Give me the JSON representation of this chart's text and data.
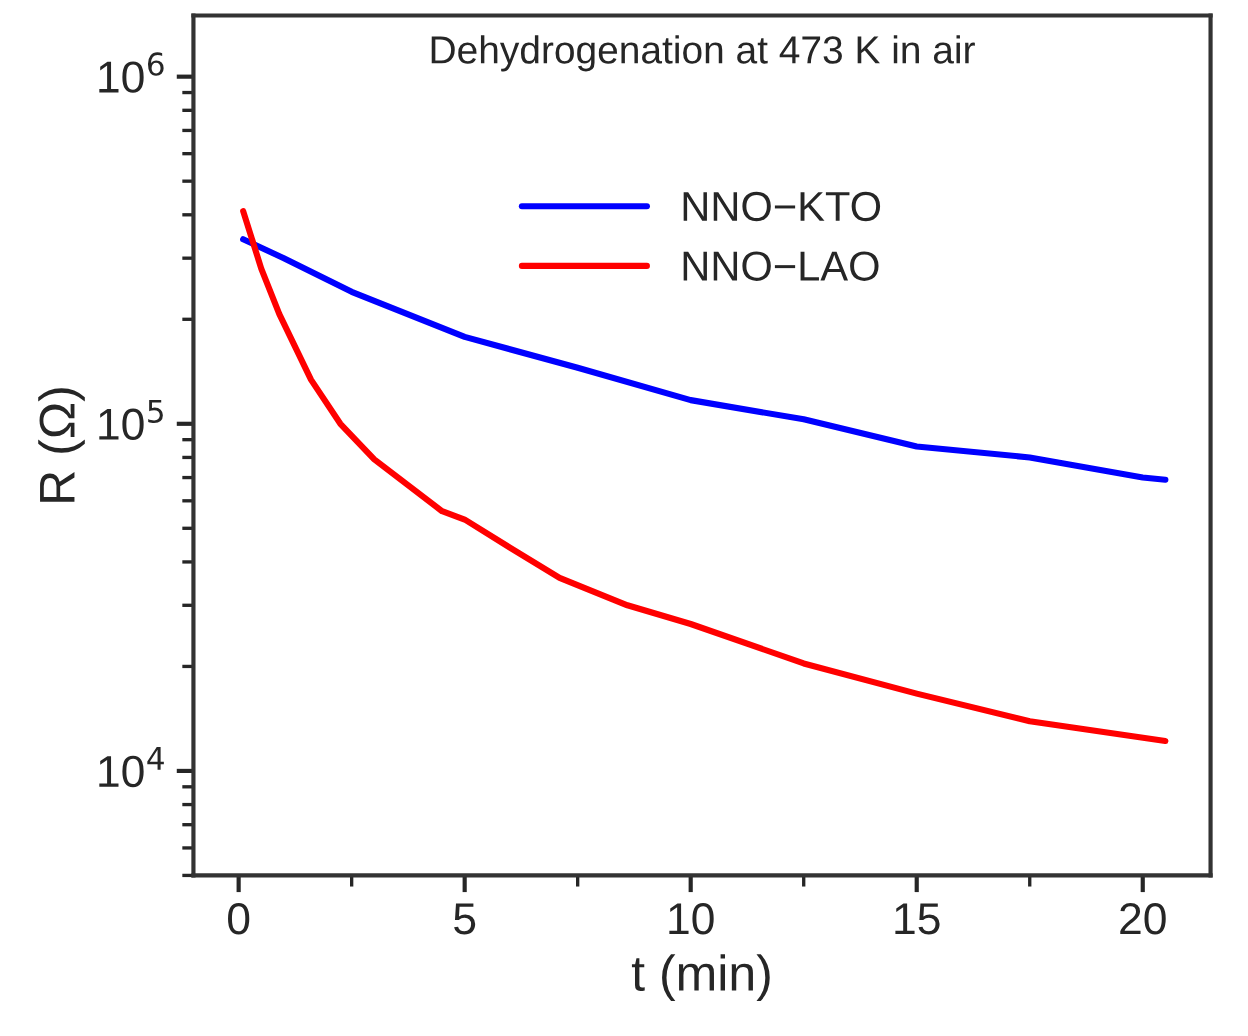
{
  "chart_data": {
    "type": "line",
    "title": "Dehydrogenation at 473 K in air",
    "xlabel": "t (min)",
    "ylabel": "R (Ω)",
    "log": "y",
    "grid": false,
    "legend": "top",
    "marker": "none",
    "line_style": "solid",
    "xlim": [
      -1,
      21.5
    ],
    "xticks": [
      0,
      5,
      10,
      15,
      20
    ],
    "ylim": [
      5000,
      1500000
    ],
    "yticks": [
      {
        "value": 10000,
        "label": "10$^{4}$"
      },
      {
        "value": 100000,
        "label": "10$^{5}$"
      },
      {
        "value": 1000000,
        "label": "10$^{6}$"
      }
    ],
    "series": [
      {
        "name": "NNO−KTO",
        "color": "#0000ff",
        "x": [
          0.1,
          1,
          2.5,
          5,
          7.5,
          10,
          12.5,
          15,
          17.5,
          20,
          20.5
        ],
        "values": [
          340000,
          300000,
          240000,
          178000,
          145000,
          117000,
          103000,
          86000,
          80000,
          70000,
          69000
        ]
      },
      {
        "name": "NNO−LAO",
        "color": "#ff0000",
        "x": [
          0.1,
          0.5,
          0.9,
          1.6,
          2.25,
          3,
          4.5,
          5,
          6,
          7.1,
          8.6,
          10,
          12.5,
          15,
          17.5,
          20.5
        ],
        "values": [
          410000,
          280000,
          207000,
          134000,
          100000,
          79000,
          56000,
          53000,
          44000,
          36000,
          30000,
          26500,
          20400,
          16700,
          13900,
          12200
        ]
      }
    ]
  }
}
